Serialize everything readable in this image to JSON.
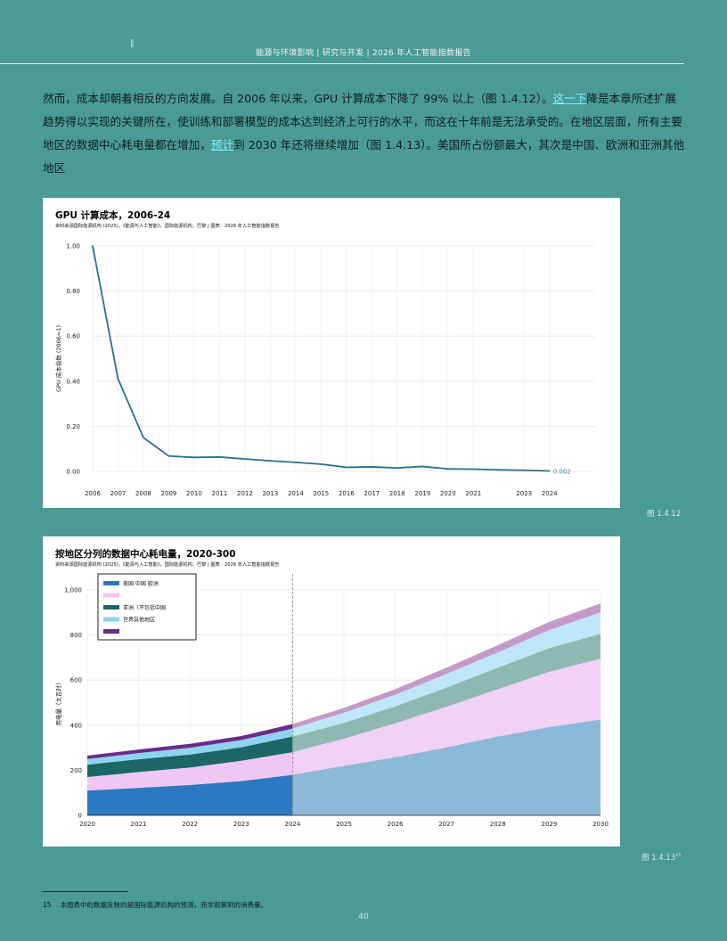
{
  "page_mark": "∥",
  "header": "能源与环境影响 | 研究与开发 | 2026 年人工智能指数报告",
  "body": {
    "p1": "然而，成本却朝着相反的方向发展。自 2006 年以来，GPU 计算成本下降了 99% 以上（图 1.4.12）。",
    "link1": "这一下",
    "p2": "降是本章所述扩展趋势得以实现的关键所在，使训练和部署模型的成本达到经济上可行的水平，而这在十年前是无法承受的。在地区层面，所有主要地区的数据中心耗电量都在增加，",
    "link2": "预计",
    "p3": "到 2030 年还将继续增加（图 1.4.13）。美国所占份额最大，其次是中国、欧洲和亚洲其他地区"
  },
  "figure1": {
    "title": "GPU 计算成本，2006-24",
    "source": "资料来源国际能源机构 (2025)，《能源与人工智能》，国际能源机构，巴黎 | 图表：2026 年人工智能指数报告",
    "label": "图 1.4.12",
    "end_label": "0.002",
    "colors": {
      "line": "#2b6f8f",
      "label": "#2b7fb0"
    }
  },
  "figure2": {
    "title": "按地区分列的数据中心耗电量，2020-300",
    "source": "资料来源国际能源机构 (2025)，《能源与人工智能》，国际能源机构，巴黎 | 图表：2026 年人工智能指数报告",
    "label": "图 1.4.13",
    "label_sup": "15",
    "legend": [
      "美国 中国 欧洲",
      "",
      "亚洲（不包括中国",
      "世界其他地区",
      ""
    ]
  },
  "chart_data": [
    {
      "type": "line",
      "title": "GPU 计算成本，2006-24",
      "ylabel": "GPU 成本指数 (2006=1)",
      "xlabel": "",
      "ylim": [
        0,
        1.0
      ],
      "yticks": [
        "1.00",
        "0.80",
        "0.60",
        "0.40",
        "0.20",
        "0.00"
      ],
      "xticks": [
        "2006",
        "2007",
        "2008",
        "2009",
        "2010",
        "2011",
        "2012",
        "2013",
        "2014",
        "2015",
        "2016",
        "2017",
        "2018",
        "2019",
        "2020",
        "2021",
        "2023",
        "2024"
      ],
      "x": [
        2006,
        2007,
        2008,
        2009,
        2010,
        2011,
        2012,
        2013,
        2014,
        2015,
        2016,
        2017,
        2018,
        2019,
        2020,
        2021,
        2022,
        2023,
        2024
      ],
      "values": [
        1.0,
        0.41,
        0.15,
        0.068,
        0.062,
        0.064,
        0.055,
        0.047,
        0.04,
        0.032,
        0.018,
        0.02,
        0.015,
        0.022,
        0.011,
        0.01,
        0.007,
        0.005,
        0.002
      ],
      "grid": true
    },
    {
      "type": "area",
      "stacked": true,
      "title": "按地区分列的数据中心耗电量，2020-300",
      "ylabel": "用电量（太瓦时）",
      "xlabel": "",
      "ylim": [
        0,
        1000
      ],
      "yticks": [
        "1,000",
        "800",
        "600",
        "400",
        "200",
        "0"
      ],
      "categories": [
        "2020",
        "2021",
        "2022",
        "2023",
        "2024",
        "2025",
        "2026",
        "2027",
        "2028",
        "2029",
        "2030"
      ],
      "divider_at": "2024",
      "legend_position": "top-left",
      "series": [
        {
          "values": [
            110,
            122,
            135,
            152,
            180,
            220,
            258,
            302,
            350,
            392,
            425
          ],
          "color": "#2a79c2",
          "projected_color": "#8db9d9"
        },
        {
          "values": [
            60,
            70,
            77,
            90,
            100,
            120,
            150,
            180,
            210,
            245,
            270
          ],
          "color": "#f0c7f4",
          "projected_color": "#f1d1f5"
        },
        {
          "values": [
            55,
            57,
            58,
            60,
            70,
            70,
            75,
            85,
            95,
            105,
            110
          ],
          "color": "#1c6766",
          "projected_color": "#8fb8b2"
        },
        {
          "values": [
            25,
            27,
            30,
            32,
            35,
            45,
            52,
            60,
            68,
            80,
            95
          ],
          "color": "#8fd4ee",
          "projected_color": "#bfe6f6"
        },
        {
          "values": [
            15,
            16,
            17,
            18,
            20,
            22,
            25,
            28,
            32,
            36,
            40
          ],
          "color": "#6a2c8a",
          "projected_color": "#c59ac8"
        }
      ]
    }
  ],
  "footnote": {
    "num": "15",
    "text": "本图表中的数据反映的是国际能源机构的预测，而非观察到的消费量。"
  },
  "page_number": "40"
}
